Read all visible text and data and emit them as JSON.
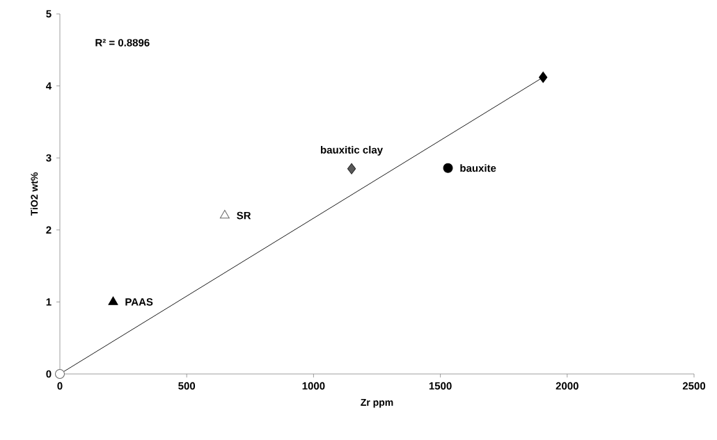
{
  "chart_data": {
    "type": "scatter",
    "xlabel": "Zr ppm",
    "ylabel": "TiO2 wt%",
    "xlim": [
      0,
      2500
    ],
    "xticks": [
      0,
      500,
      1000,
      1500,
      2000,
      2500
    ],
    "ylim": [
      0,
      5
    ],
    "yticks": [
      0,
      1,
      2,
      3,
      4,
      5
    ],
    "grid": false,
    "annotations": [
      "R² = 0.8896"
    ],
    "series": [
      {
        "x": [
          0
        ],
        "values": [
          0
        ],
        "color": "#ffffff",
        "marker": "circle"
      },
      {
        "name": "PAAS",
        "x": [
          210
        ],
        "values": [
          1.0
        ],
        "color": "#000000",
        "marker": "triangle"
      },
      {
        "name": "SR",
        "x": [
          650
        ],
        "values": [
          2.2
        ],
        "color": "#ffffff",
        "marker": "triangle"
      },
      {
        "name": "bauxitic clay",
        "x": [
          1150
        ],
        "values": [
          2.85
        ],
        "color": "#595959",
        "marker": "diamond"
      },
      {
        "name": "bauxite",
        "x": [
          1530
        ],
        "values": [
          2.86
        ],
        "color": "#000000",
        "marker": "circle"
      },
      {
        "x": [
          1905
        ],
        "values": [
          4.12
        ],
        "color": "#000000",
        "marker": "diamond"
      },
      {
        "type": "line",
        "x": [
          0,
          1905
        ],
        "values": [
          0,
          4.12
        ],
        "color": "#000000",
        "marker": "none",
        "line_style": "solid"
      }
    ]
  }
}
